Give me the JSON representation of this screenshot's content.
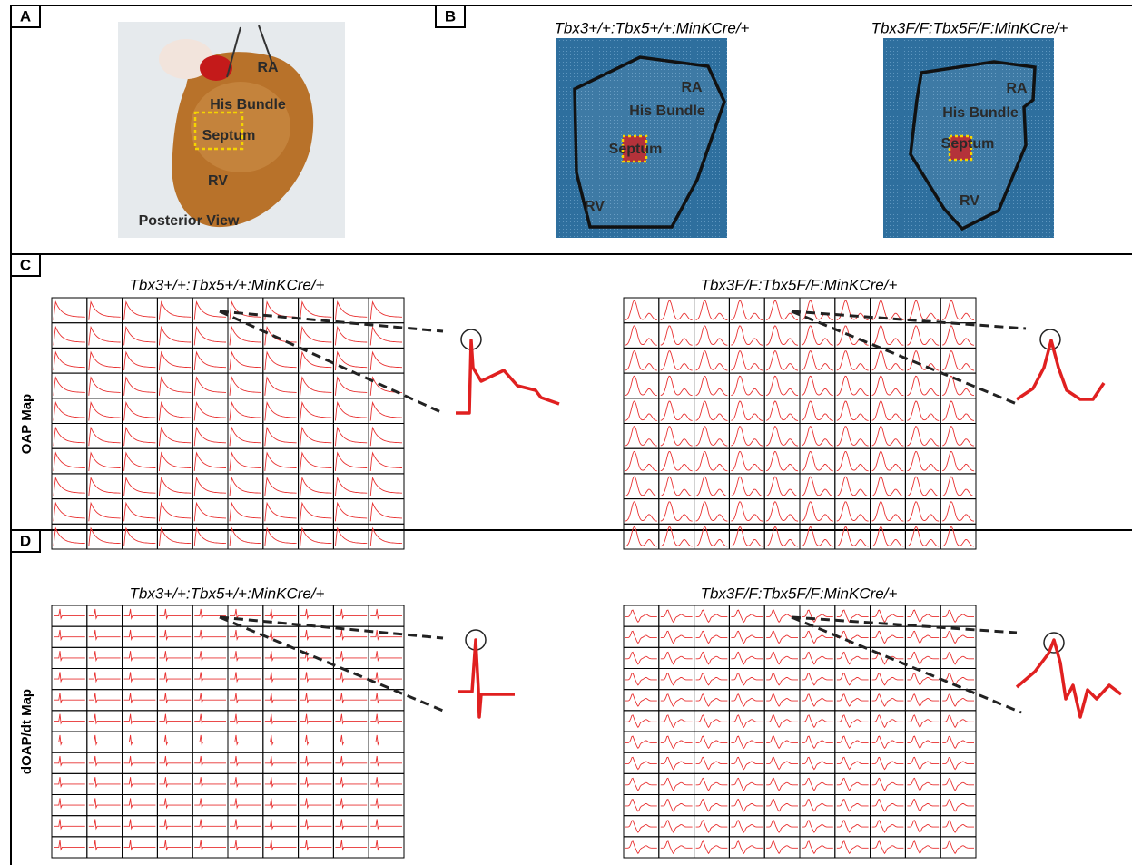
{
  "panels": [
    {
      "label": "A",
      "annotations": [
        "RA",
        "His Bundle",
        "Septum",
        "RV"
      ],
      "caption": "Posterior View"
    },
    {
      "label": "B",
      "images": [
        {
          "title": "Tbx3+/+:Tbx5+/+:MinKCre/+",
          "annotations": [
            "RA",
            "His Bundle",
            "Septum",
            "RV"
          ]
        },
        {
          "title": "Tbx3F/F:Tbx5F/F:MinKCre/+",
          "annotations": [
            "RA",
            "His Bundle",
            "Septum",
            "RV"
          ]
        }
      ]
    },
    {
      "label": "C",
      "row_label": "OAP Map",
      "maps": [
        {
          "title": "Tbx3+/+:Tbx5+/+:MinKCre/+"
        },
        {
          "title": "Tbx3F/F:Tbx5F/F:MinKCre/+"
        }
      ]
    },
    {
      "label": "D",
      "row_label": "dOAP/dt Map",
      "maps": [
        {
          "title": "Tbx3+/+:Tbx5+/+:MinKCre/+"
        },
        {
          "title": "Tbx3F/F:Tbx5F/F:MinKCre/+"
        }
      ]
    }
  ]
}
